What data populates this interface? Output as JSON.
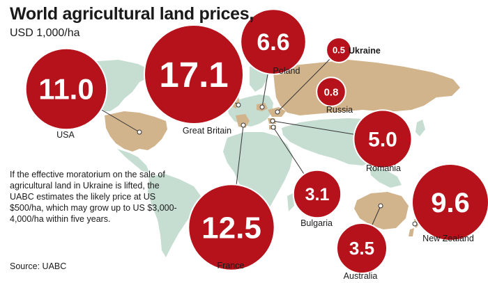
{
  "header": {
    "title": "World agricultural land prices,",
    "subtitle": "USD 1,000/ha"
  },
  "note": "If the effective moratorium on the sale of agricultural land in Ukraine is lifted, the UABC estimates the likely price at US $500/ha, which may grow up to US $3,000-4,000/ha within five years.",
  "source": "Source: UABC",
  "colors": {
    "bubble": "#b5121b",
    "bubble_stroke": "#ffffff",
    "highlight_land": "#d2b48c",
    "other_land": "#c6ddd1",
    "leader": "#333333"
  },
  "chart_data": {
    "type": "bubble-map",
    "unit": "USD 1,000/ha",
    "categories": [
      "USA",
      "Great Britain",
      "France",
      "Poland",
      "Ukraine",
      "Russia",
      "Romania",
      "Bulgaria",
      "Australia",
      "New Zealand"
    ],
    "values": [
      11.0,
      17.1,
      12.5,
      6.6,
      0.5,
      0.8,
      5.0,
      3.1,
      3.5,
      9.6
    ],
    "value_labels": [
      "11.0",
      "17.1",
      "12.5",
      "6.6",
      "0.5",
      "0.8",
      "5.0",
      "3.1",
      "3.5",
      "9.6"
    ],
    "highlighted": "Ukraine"
  }
}
